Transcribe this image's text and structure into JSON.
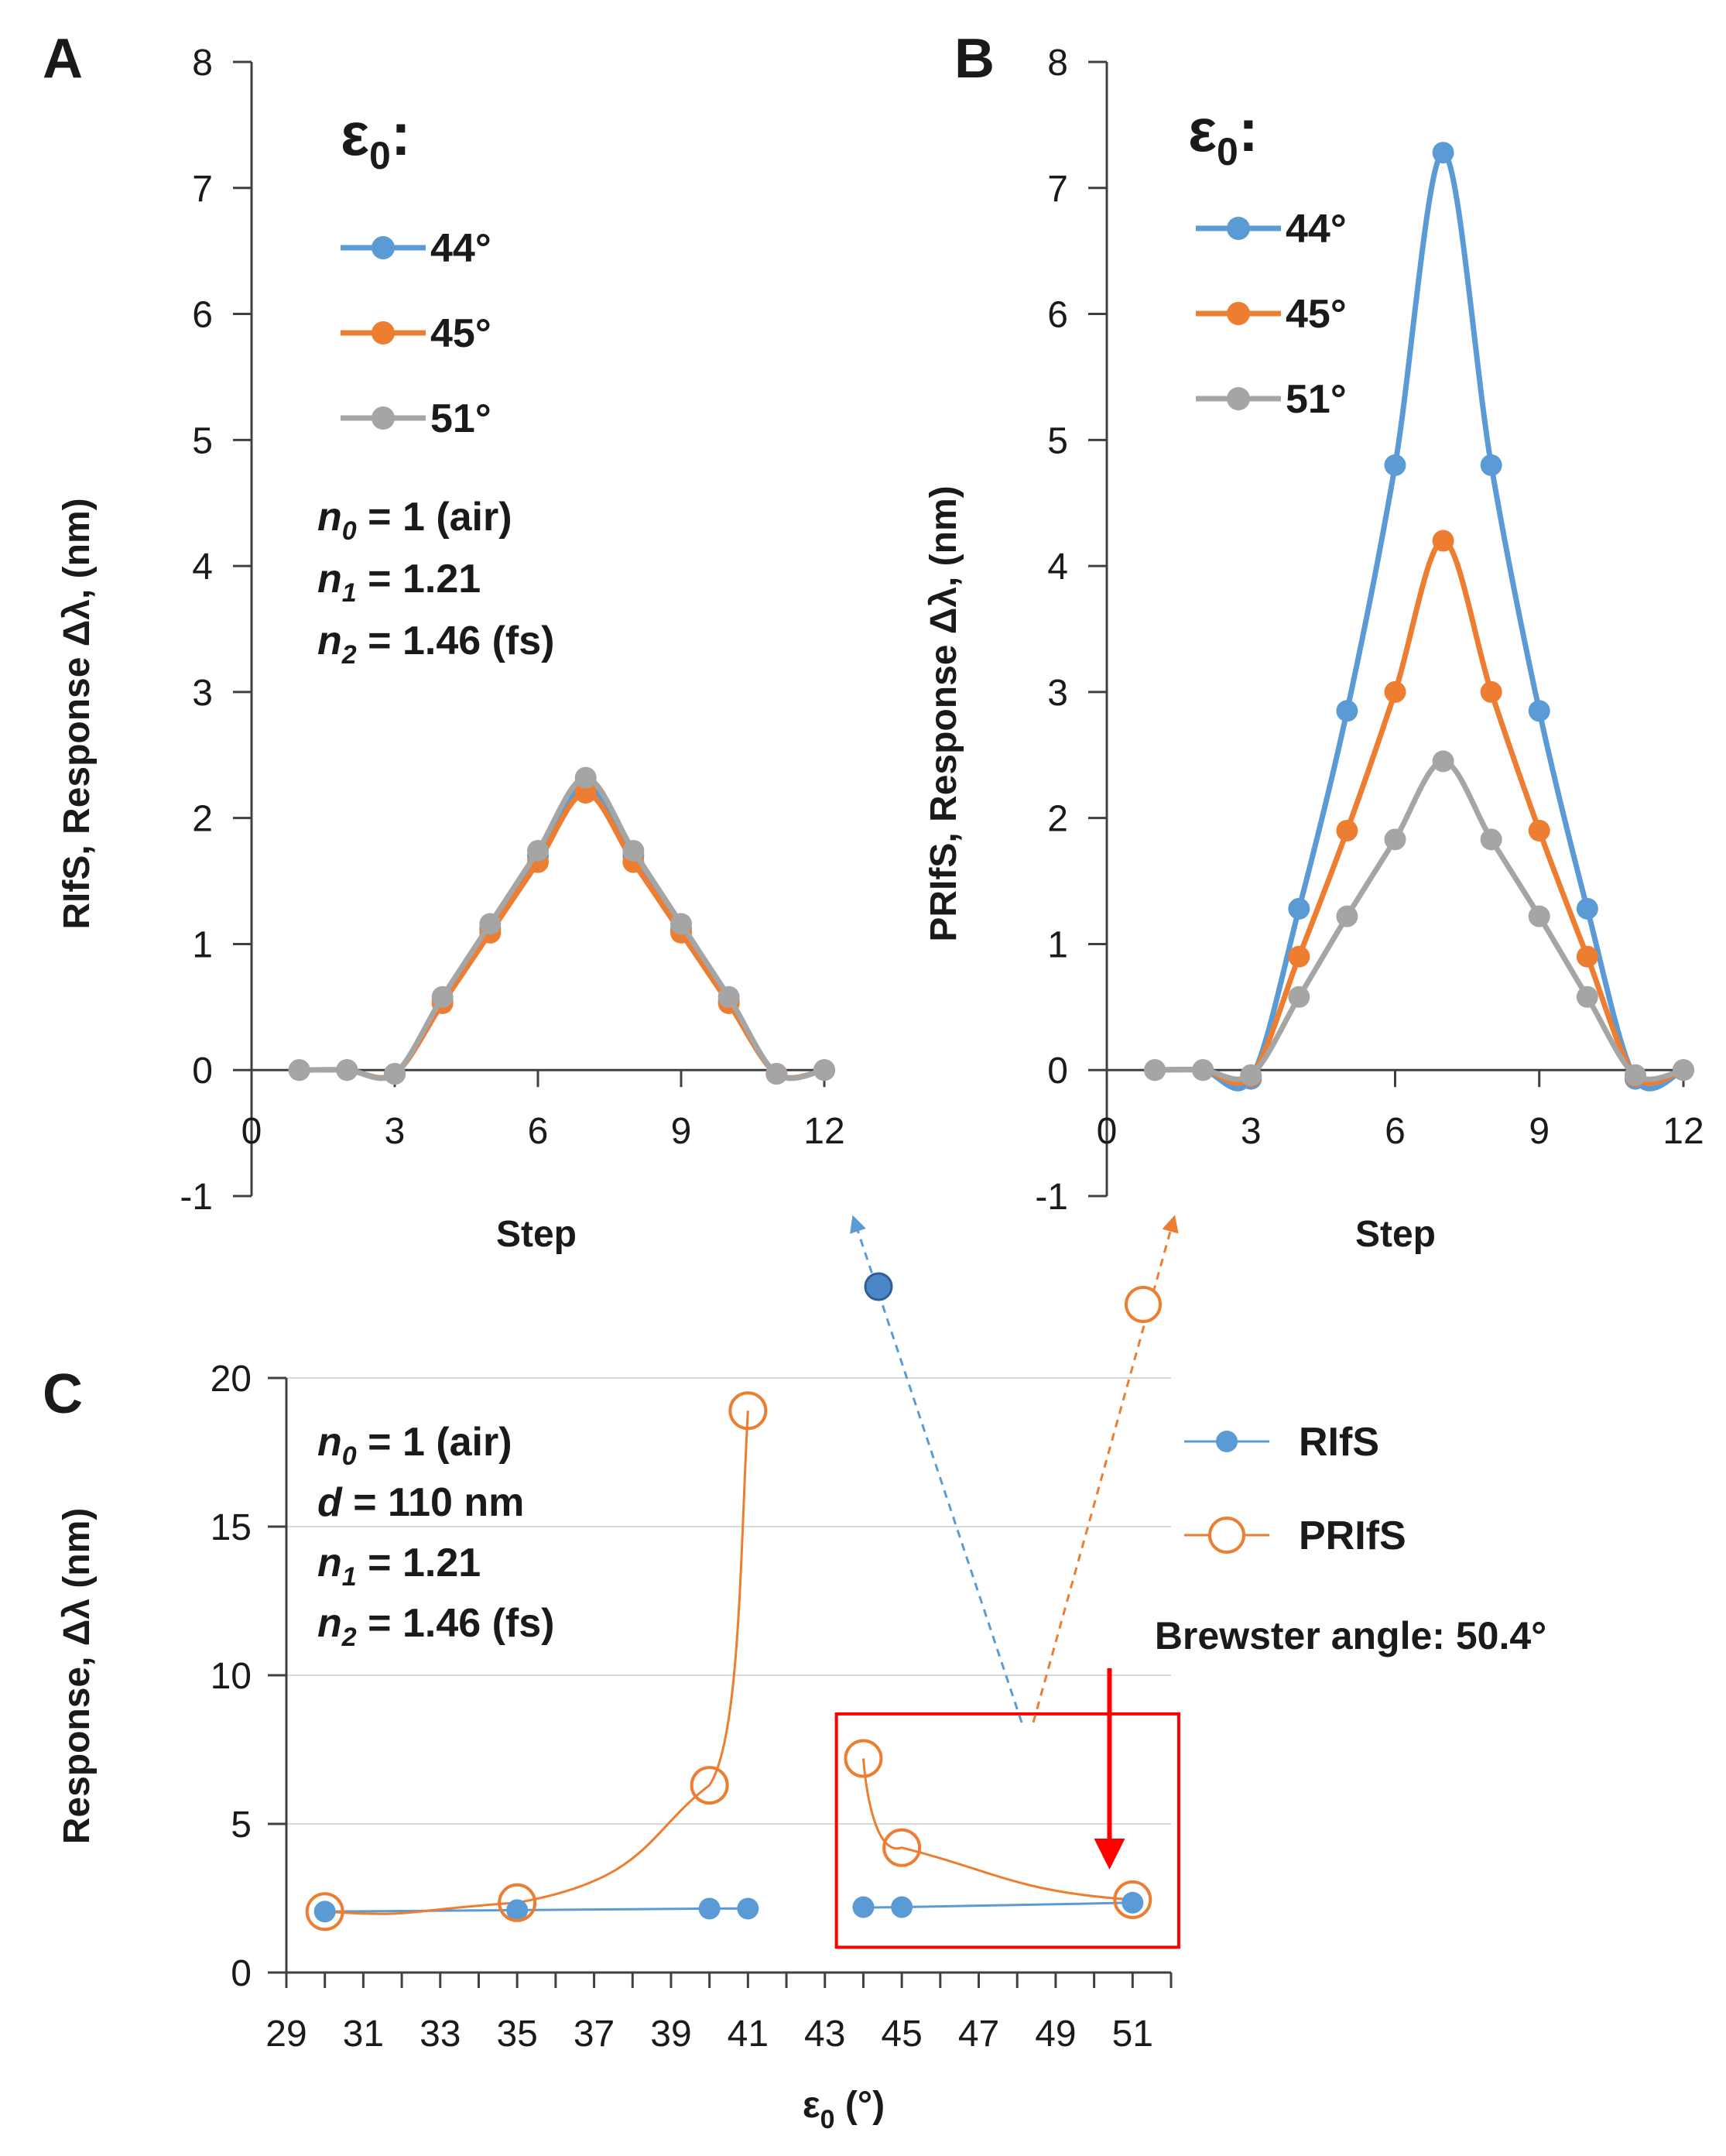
{
  "chart_data": [
    {
      "type": "line",
      "panel": "A",
      "xlabel": "Step",
      "ylabel": "RIfS, Response Δλ, (nm)",
      "xlim": [
        0,
        12
      ],
      "ylim": [
        -1,
        8
      ],
      "xticks": [
        "0",
        "3",
        "6",
        "9",
        "12"
      ],
      "yticks": [
        "-1",
        "0",
        "1",
        "2",
        "3",
        "4",
        "5",
        "6",
        "7",
        "8"
      ],
      "legend_title_main": "ε",
      "legend_title_sub": "0",
      "legend_title_colon": ":",
      "params": [
        {
          "var": "n",
          "sub": "0",
          "eq": " = 1 (air)"
        },
        {
          "var": "n",
          "sub": "1",
          "eq": " = 1.21"
        },
        {
          "var": "n",
          "sub": "2",
          "eq": " = 1.46 (fs)"
        }
      ],
      "x": [
        1,
        2,
        3,
        4,
        5,
        6,
        7,
        8,
        9,
        10,
        11,
        12
      ],
      "series": [
        {
          "name": "44°",
          "color": "#5B9BD5",
          "values": [
            0,
            0,
            -0.03,
            0.55,
            1.12,
            1.7,
            2.25,
            1.7,
            1.12,
            0.55,
            -0.03,
            0
          ]
        },
        {
          "name": "45°",
          "color": "#ED7D31",
          "values": [
            0,
            0,
            -0.03,
            0.53,
            1.09,
            1.65,
            2.2,
            1.65,
            1.09,
            0.53,
            -0.03,
            0
          ]
        },
        {
          "name": "51°",
          "color": "#A5A5A5",
          "values": [
            0,
            0,
            -0.03,
            0.58,
            1.16,
            1.74,
            2.32,
            1.74,
            1.16,
            0.58,
            -0.03,
            0
          ]
        }
      ]
    },
    {
      "type": "line",
      "panel": "B",
      "xlabel": "Step",
      "ylabel": "PRIfS, Response Δλ, (nm)",
      "xlim": [
        0,
        12
      ],
      "ylim": [
        -1,
        8
      ],
      "xticks": [
        "0",
        "3",
        "6",
        "9",
        "12"
      ],
      "yticks": [
        "-1",
        "0",
        "1",
        "2",
        "3",
        "4",
        "5",
        "6",
        "7",
        "8"
      ],
      "legend_title_main": "ε",
      "legend_title_sub": "0",
      "legend_title_colon": ":",
      "x": [
        1,
        2,
        3,
        4,
        5,
        6,
        7,
        8,
        9,
        10,
        11,
        12
      ],
      "series": [
        {
          "name": "44°",
          "color": "#5B9BD5",
          "values": [
            0,
            0,
            -0.07,
            1.28,
            2.85,
            4.8,
            7.28,
            4.8,
            2.85,
            1.28,
            -0.07,
            0
          ]
        },
        {
          "name": "45°",
          "color": "#ED7D31",
          "values": [
            0,
            0,
            -0.05,
            0.9,
            1.9,
            3.0,
            4.2,
            3.0,
            1.9,
            0.9,
            -0.05,
            0
          ]
        },
        {
          "name": "51°",
          "color": "#A5A5A5",
          "values": [
            0,
            0,
            -0.04,
            0.58,
            1.22,
            1.83,
            2.45,
            1.83,
            1.22,
            0.58,
            -0.04,
            0
          ]
        }
      ]
    },
    {
      "type": "scatter",
      "panel": "C",
      "xlabel_main": "ε",
      "xlabel_sub": "0",
      "xlabel_rest": " (°)",
      "ylabel": "Response, Δλ (nm)",
      "xlim": [
        29,
        52
      ],
      "ylim": [
        0,
        20
      ],
      "xticks": [
        "29",
        "31",
        "33",
        "35",
        "37",
        "39",
        "41",
        "43",
        "45",
        "47",
        "49",
        "51"
      ],
      "yticks": [
        "0",
        "5",
        "10",
        "15",
        "20"
      ],
      "params": [
        {
          "var": "n",
          "sub": "0",
          "eq": " = 1 (air)"
        },
        {
          "var": "d",
          "sub": "",
          "eq": " = 110 nm"
        },
        {
          "var": "n",
          "sub": "1",
          "eq": " = 1.21"
        },
        {
          "var": "n",
          "sub": "2",
          "eq": " = 1.46 (fs)"
        }
      ],
      "series": [
        {
          "name": "RIfS",
          "color": "#5B9BD5",
          "marker": "filled-circle",
          "x": [
            30,
            35,
            40,
            41,
            44,
            45,
            51
          ],
          "values": [
            2.05,
            2.1,
            2.15,
            2.15,
            2.2,
            2.2,
            2.35
          ]
        },
        {
          "name": "PRIfS",
          "color": "#ED7D31",
          "marker": "open-circle",
          "x": [
            30,
            35,
            40,
            41,
            44,
            45,
            51
          ],
          "values": [
            2.05,
            2.35,
            6.3,
            18.9,
            7.2,
            4.2,
            2.45
          ]
        }
      ],
      "annotation": {
        "text": "Brewster angle: 50.4°",
        "color": "#FF0000",
        "x": 50.4
      },
      "highlight_box": {
        "x_range": [
          43.3,
          52.2
        ],
        "y_range": [
          0.85,
          8.7
        ],
        "color": "#FF0000"
      }
    }
  ]
}
